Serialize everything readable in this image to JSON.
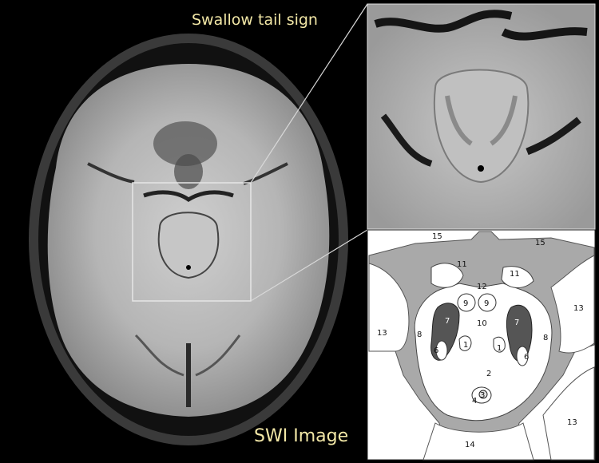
{
  "captions": {
    "top": "Swallow tail sign",
    "bottom": "SWI Image"
  },
  "diagram_labels": {
    "l15a": "15",
    "l15b": "15",
    "l11a": "11",
    "l11b": "11",
    "l12": "12",
    "l9a": "9",
    "l9b": "9",
    "l10": "10",
    "l13a": "13",
    "l13b": "13",
    "l13c": "13",
    "l8a": "8",
    "l8b": "8",
    "l7a": "7",
    "l7b": "7",
    "l6a": "6",
    "l6b": "6",
    "l1a": "1",
    "l1b": "1",
    "l2": "2",
    "l3": "3",
    "l4": "4",
    "l14": "14"
  },
  "colors": {
    "background": "#000000",
    "caption": "#f2e7a6",
    "diagram_gray": "#a9a9a9",
    "diagram_dark": "#555555"
  }
}
